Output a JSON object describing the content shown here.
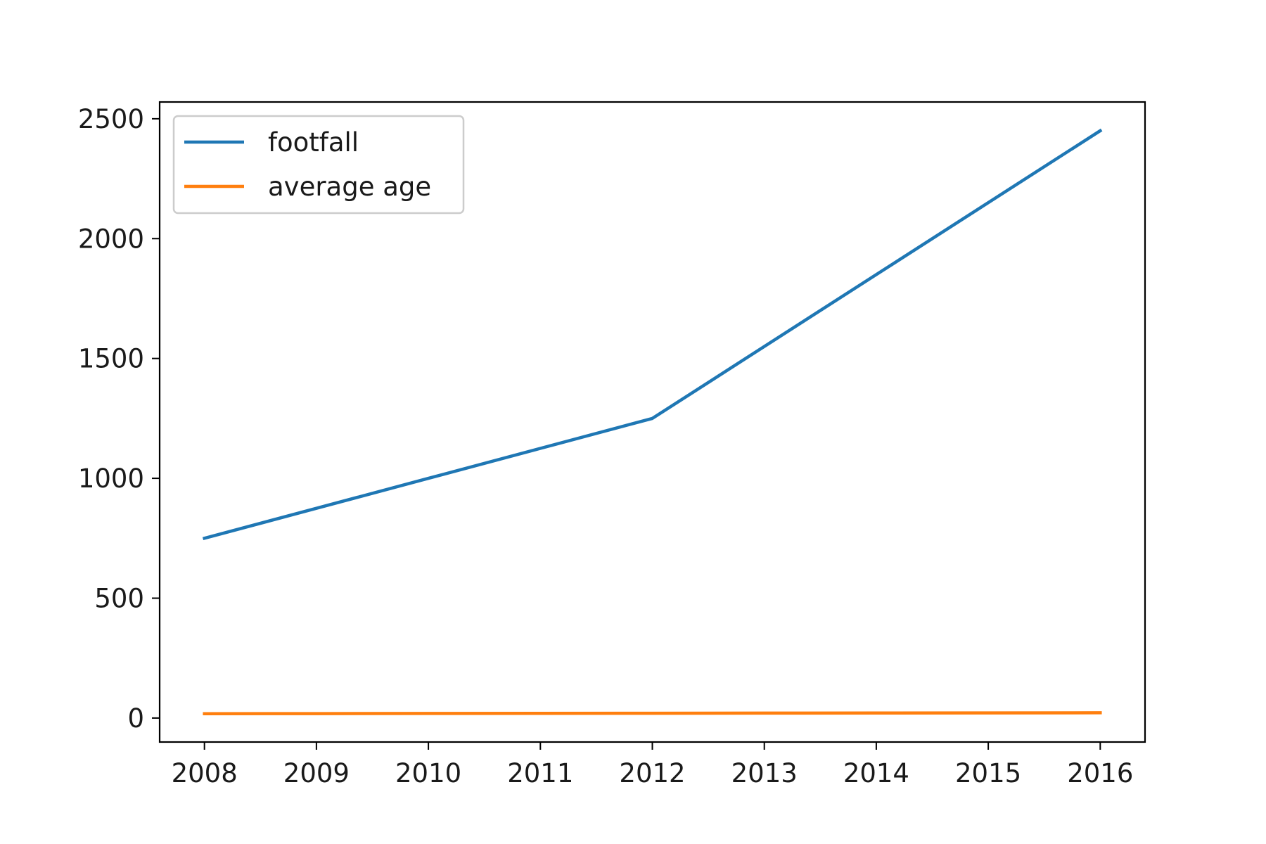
{
  "chart_data": {
    "type": "line",
    "x": [
      2008,
      2009,
      2010,
      2011,
      2012,
      2013,
      2014,
      2015,
      2016
    ],
    "series": [
      {
        "name": "footfall",
        "color": "#1f77b4",
        "values": [
          750,
          875,
          1000,
          1125,
          1250,
          1550,
          1850,
          2150,
          2450
        ]
      },
      {
        "name": "average age",
        "color": "#ff7f0e",
        "values": [
          18,
          18.5,
          19,
          19.5,
          20,
          20.5,
          21,
          21.5,
          22
        ]
      }
    ],
    "xticks": [
      "2008",
      "2009",
      "2010",
      "2011",
      "2012",
      "2013",
      "2014",
      "2015",
      "2016"
    ],
    "yticks": [
      "0",
      "500",
      "1000",
      "1500",
      "2000",
      "2500"
    ],
    "ytick_values": [
      0,
      500,
      1000,
      1500,
      2000,
      2500
    ],
    "xlim": [
      2007.6,
      2016.4
    ],
    "ylim": [
      -100,
      2570
    ],
    "legend_position": "upper-left",
    "grid": false,
    "title": "",
    "xlabel": "",
    "ylabel": ""
  }
}
